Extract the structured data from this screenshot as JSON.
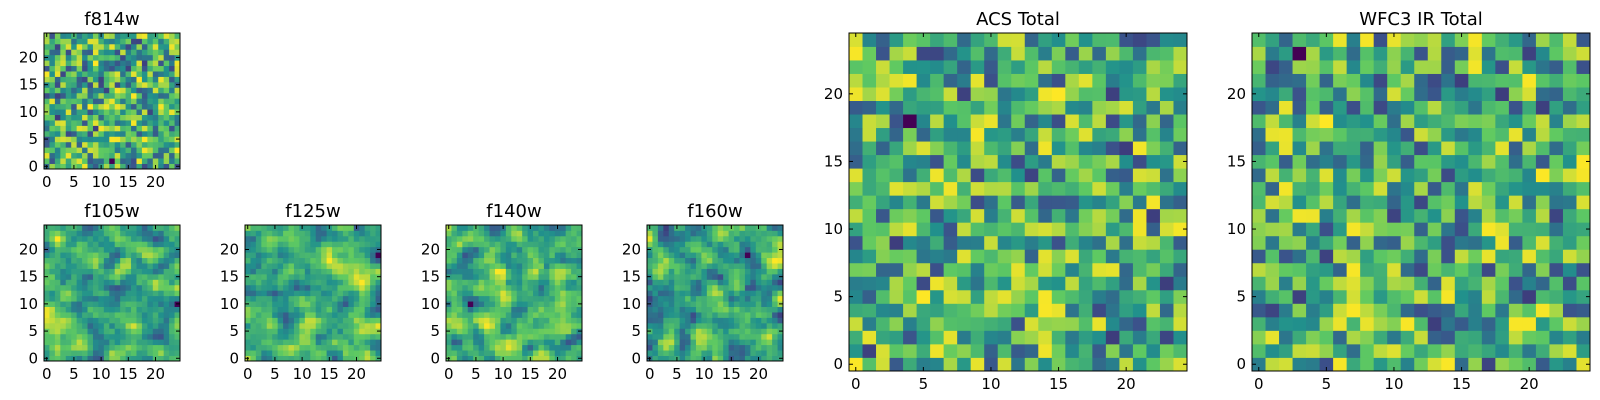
{
  "figure": {
    "description_colors": {
      "colormap": "viridis",
      "cmap_stops": [
        "#440154",
        "#3b528b",
        "#21918c",
        "#5ec962",
        "#fde725"
      ]
    }
  },
  "chart_data": [
    {
      "type": "heatmap",
      "title": "f814w",
      "grid_size": 25,
      "xticks": [
        "0",
        "5",
        "10",
        "15",
        "20"
      ],
      "yticks": [
        "0",
        "5",
        "10",
        "15",
        "20"
      ],
      "xlim": [
        -0.5,
        24.5
      ],
      "ylim": [
        -0.5,
        24.5
      ],
      "seed": 101,
      "texture": "fine",
      "colormap": "viridis"
    },
    {
      "type": "heatmap",
      "title": "f105w",
      "grid_size": 25,
      "xticks": [
        "0",
        "5",
        "10",
        "15",
        "20"
      ],
      "yticks": [
        "0",
        "5",
        "10",
        "15",
        "20"
      ],
      "xlim": [
        -0.5,
        24.5
      ],
      "ylim": [
        -0.5,
        24.5
      ],
      "seed": 202,
      "texture": "smooth",
      "colormap": "viridis"
    },
    {
      "type": "heatmap",
      "title": "f125w",
      "grid_size": 25,
      "xticks": [
        "0",
        "5",
        "10",
        "15",
        "20"
      ],
      "yticks": [
        "0",
        "5",
        "10",
        "15",
        "20"
      ],
      "xlim": [
        -0.5,
        24.5
      ],
      "ylim": [
        -0.5,
        24.5
      ],
      "seed": 303,
      "texture": "smooth",
      "colormap": "viridis"
    },
    {
      "type": "heatmap",
      "title": "f140w",
      "grid_size": 25,
      "xticks": [
        "0",
        "5",
        "10",
        "15",
        "20"
      ],
      "yticks": [
        "0",
        "5",
        "10",
        "15",
        "20"
      ],
      "xlim": [
        -0.5,
        24.5
      ],
      "ylim": [
        -0.5,
        24.5
      ],
      "seed": 404,
      "texture": "smooth",
      "colormap": "viridis"
    },
    {
      "type": "heatmap",
      "title": "f160w",
      "grid_size": 25,
      "xticks": [
        "0",
        "5",
        "10",
        "15",
        "20"
      ],
      "yticks": [
        "0",
        "5",
        "10",
        "15",
        "20"
      ],
      "xlim": [
        -0.5,
        24.5
      ],
      "ylim": [
        -0.5,
        24.5
      ],
      "seed": 505,
      "texture": "smooth",
      "colormap": "viridis"
    },
    {
      "type": "heatmap",
      "title": "ACS Total",
      "grid_size": 25,
      "xticks": [
        "0",
        "5",
        "10",
        "15",
        "20"
      ],
      "yticks": [
        "0",
        "5",
        "10",
        "15",
        "20"
      ],
      "xlim": [
        -0.5,
        24.5
      ],
      "ylim": [
        -0.5,
        24.5
      ],
      "seed": 606,
      "texture": "blocky",
      "colormap": "viridis"
    },
    {
      "type": "heatmap",
      "title": "WFC3 IR Total",
      "grid_size": 25,
      "xticks": [
        "0",
        "5",
        "10",
        "15",
        "20"
      ],
      "yticks": [
        "0",
        "5",
        "10",
        "15",
        "20"
      ],
      "xlim": [
        -0.5,
        24.5
      ],
      "ylim": [
        -0.5,
        24.5
      ],
      "seed": 707,
      "texture": "blocky",
      "colormap": "viridis"
    }
  ]
}
